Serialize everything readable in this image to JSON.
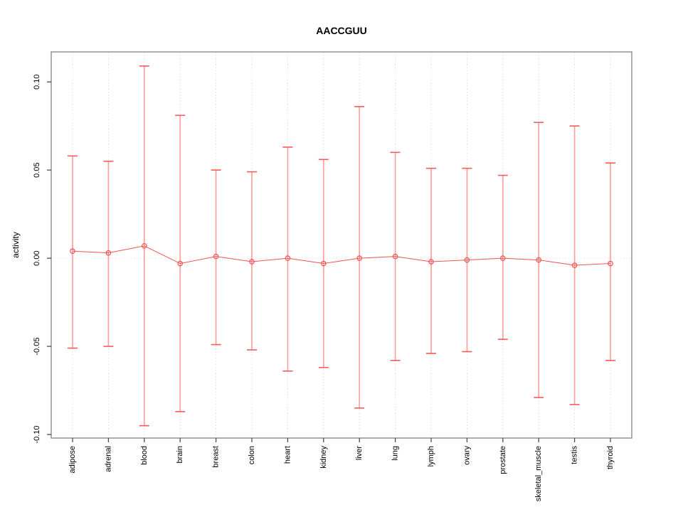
{
  "figure": {
    "title": "AACCGUU",
    "ylabel": "activity"
  },
  "chart_data": {
    "type": "scatter",
    "subtype": "points-with-error-bars",
    "title": "AACCGUU",
    "xlabel": "",
    "ylabel": "activity",
    "categories": [
      "adipose",
      "adrenal",
      "blood",
      "brain",
      "breast",
      "colon",
      "heart",
      "kidney",
      "liver",
      "lung",
      "lymph",
      "ovary",
      "prostate",
      "skeletal_muscle",
      "testis",
      "thyroid"
    ],
    "series": [
      {
        "name": "activity",
        "values": [
          0.004,
          0.003,
          0.007,
          -0.003,
          0.001,
          -0.002,
          0.0,
          -0.003,
          0.0,
          0.001,
          -0.002,
          -0.001,
          0.0,
          -0.001,
          -0.004,
          -0.003
        ]
      }
    ],
    "error_high": [
      0.058,
      0.055,
      0.109,
      0.081,
      0.05,
      0.049,
      0.063,
      0.056,
      0.086,
      0.06,
      0.051,
      0.051,
      0.047,
      0.077,
      0.075,
      0.054
    ],
    "error_low": [
      -0.051,
      -0.05,
      -0.095,
      -0.087,
      -0.049,
      -0.052,
      -0.064,
      -0.062,
      -0.085,
      -0.058,
      -0.054,
      -0.053,
      -0.046,
      -0.079,
      -0.083,
      -0.058
    ],
    "yticks": {
      "values": [
        -0.1,
        -0.05,
        0.0,
        0.05,
        0.1
      ],
      "labels": [
        "-0.10",
        "-0.05",
        "0.00",
        "0.05",
        "0.10"
      ]
    },
    "ylim": [
      -0.102,
      0.117
    ],
    "grid": {
      "vertical_dotted_per_category": true,
      "zero_line_dotted": true,
      "horizontal_gridlines": false
    },
    "legend": "none",
    "colors": {
      "point": "#ef5350",
      "connector": "#ef5350",
      "error_line": "#ffa0a0",
      "error_cap": "#f25c5c",
      "grid": "#dcdcdc",
      "zero_line": "#e4e4e4",
      "box": "#8a8a8a",
      "tick": "#4d4d4d",
      "text": "#000000"
    }
  }
}
